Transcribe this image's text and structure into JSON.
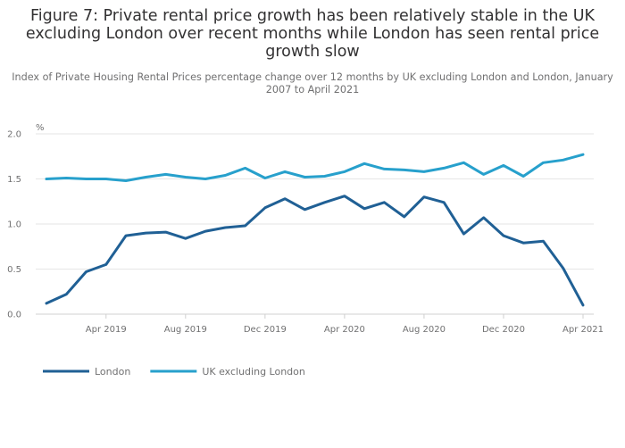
{
  "chart_data": {
    "type": "line",
    "title": "Figure 7: Private rental price growth has been relatively stable in the UK excluding London over recent months while London has seen rental price growth slow",
    "subtitle": "Index of Private Housing Rental Prices percentage change over 12 months by UK excluding London and London, January 2007 to April 2021",
    "ylabel": "%",
    "ylim": [
      0,
      2.0
    ],
    "y_ticks": [
      "0.0",
      "0.5",
      "1.0",
      "1.5",
      "2.0"
    ],
    "x_tick_labels": [
      "Apr 2019",
      "Aug 2019",
      "Dec 2019",
      "Apr 2020",
      "Aug 2020",
      "Dec 2020",
      "Apr 2021"
    ],
    "x": [
      "Jan 2019",
      "Feb 2019",
      "Mar 2019",
      "Apr 2019",
      "May 2019",
      "Jun 2019",
      "Jul 2019",
      "Aug 2019",
      "Sep 2019",
      "Oct 2019",
      "Nov 2019",
      "Dec 2019",
      "Jan 2020",
      "Feb 2020",
      "Mar 2020",
      "Apr 2020",
      "May 2020",
      "Jun 2020",
      "Jul 2020",
      "Aug 2020",
      "Sep 2020",
      "Oct 2020",
      "Nov 2020",
      "Dec 2020",
      "Jan 2021",
      "Feb 2021",
      "Mar 2021",
      "Apr 2021"
    ],
    "grid": true,
    "legend_position": "bottom-left",
    "series": [
      {
        "name": "London",
        "color": "#206095",
        "values": [
          0.12,
          0.22,
          0.47,
          0.55,
          0.87,
          0.9,
          0.91,
          0.84,
          0.92,
          0.96,
          0.98,
          1.18,
          1.28,
          1.16,
          1.24,
          1.31,
          1.17,
          1.24,
          1.08,
          1.3,
          1.24,
          0.89,
          1.07,
          0.87,
          0.79,
          0.81,
          0.51,
          0.1
        ]
      },
      {
        "name": "UK excluding London",
        "color": "#27a0cc",
        "values": [
          1.5,
          1.51,
          1.5,
          1.5,
          1.48,
          1.52,
          1.55,
          1.52,
          1.5,
          1.54,
          1.62,
          1.51,
          1.58,
          1.52,
          1.53,
          1.58,
          1.67,
          1.61,
          1.6,
          1.58,
          1.62,
          1.68,
          1.55,
          1.65,
          1.53,
          1.68,
          1.71,
          1.77
        ]
      }
    ]
  },
  "colors": {
    "grid": "#e6e6e6",
    "axis": "#d0d0d0",
    "text": "#707071"
  }
}
